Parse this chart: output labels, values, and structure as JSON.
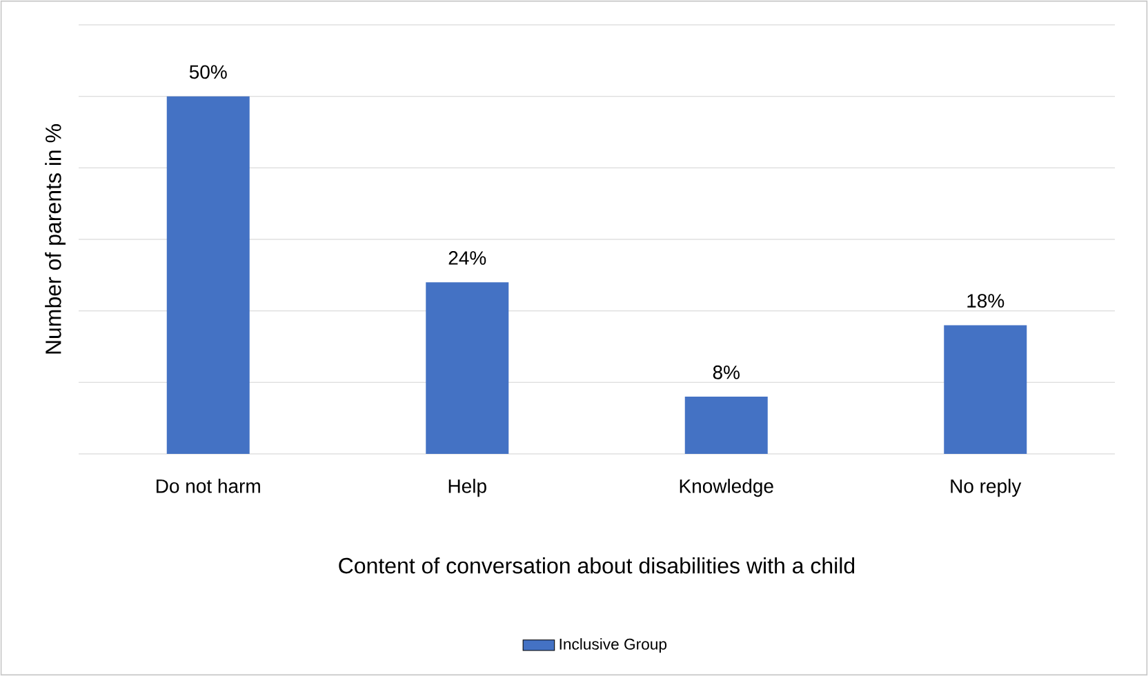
{
  "chart_data": {
    "type": "bar",
    "xlabel": "Content of conversation about disabilities with a child",
    "ylabel": "Number of parents in %",
    "categories": [
      "Do not harm",
      "Help",
      "Knowledge",
      "No reply"
    ],
    "series": [
      {
        "name": "Inclusive Group",
        "color": "#4472c4",
        "values": [
          50,
          24,
          8,
          18
        ],
        "value_labels": [
          "50%",
          "24%",
          "8%",
          "18%"
        ]
      }
    ],
    "ylim": [
      0,
      60
    ],
    "yticks": [
      {
        "value": 0,
        "label": null
      },
      {
        "value": 10,
        "label": null
      },
      {
        "value": 20,
        "label": null
      },
      {
        "value": 30,
        "label": null
      },
      {
        "value": 40,
        "label": null
      },
      {
        "value": 50,
        "label": null
      },
      {
        "value": 60,
        "label": null
      }
    ],
    "tick_labels": "x",
    "grid": "y",
    "legend": "bottom"
  }
}
